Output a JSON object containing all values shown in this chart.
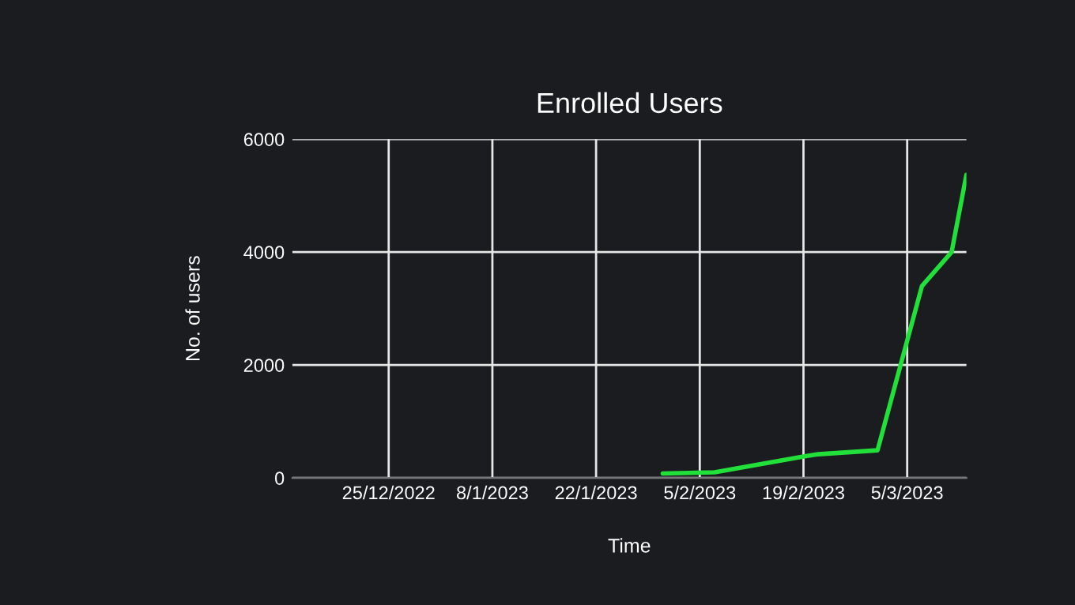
{
  "chart_data": {
    "type": "line",
    "title": "Enrolled Users",
    "xlabel": "Time",
    "ylabel": "No. of users",
    "series": [
      {
        "color": "#22e03a",
        "x": [
          "2023-01-31",
          "2023-02-07",
          "2023-02-19",
          "2023-02-21",
          "2023-03-01",
          "2023-03-07",
          "2023-03-11",
          "2023-03-13"
        ],
        "values": [
          80,
          100,
          380,
          420,
          490,
          3400,
          4000,
          5370
        ]
      }
    ],
    "xlim": [
      "2022-12-12",
      "2023-03-13"
    ],
    "xticks": [
      {
        "value": "2022-12-25",
        "label": "25/12/2022"
      },
      {
        "value": "2023-01-08",
        "label": "8/1/2023"
      },
      {
        "value": "2023-01-22",
        "label": "22/1/2023"
      },
      {
        "value": "2023-02-05",
        "label": "5/2/2023"
      },
      {
        "value": "2023-02-19",
        "label": "19/2/2023"
      },
      {
        "value": "2023-03-05",
        "label": "5/3/2023"
      }
    ],
    "ylim": [
      0,
      6000
    ],
    "yticks": [
      0,
      2000,
      4000,
      6000
    ],
    "grid": true,
    "marker": "none",
    "line_style": "solid"
  }
}
